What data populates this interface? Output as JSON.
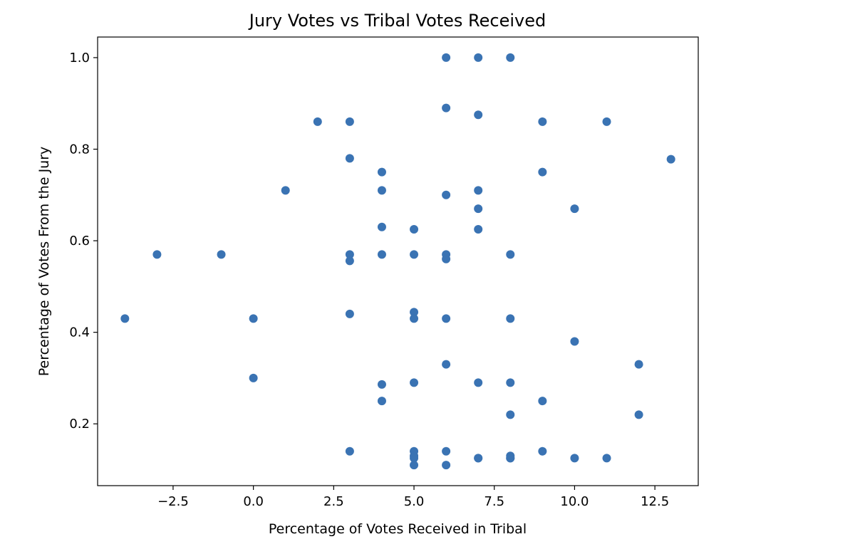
{
  "chart_data": {
    "type": "scatter",
    "title": "Jury Votes vs Tribal Votes Received",
    "xlabel": "Percentage of Votes Received in Tribal",
    "ylabel": "Percentage of Votes From the Jury",
    "xlim": [
      -4.85,
      13.85
    ],
    "ylim": [
      0.065,
      1.045
    ],
    "xticks": [
      -2.5,
      0.0,
      2.5,
      5.0,
      7.5,
      10.0,
      12.5
    ],
    "xtick_labels": [
      "−2.5",
      "0.0",
      "2.5",
      "5.0",
      "7.5",
      "10.0",
      "12.5"
    ],
    "yticks": [
      0.2,
      0.4,
      0.6,
      0.8,
      1.0
    ],
    "ytick_labels": [
      "0.2",
      "0.4",
      "0.6",
      "0.8",
      "1.0"
    ],
    "grid": false,
    "point_color": "#3a73b3",
    "series": [
      {
        "name": "",
        "x": [
          -4,
          -3,
          -1,
          0,
          0,
          1,
          2,
          3,
          3,
          3,
          3,
          3,
          3,
          4,
          4,
          4,
          4,
          4,
          4,
          5,
          5,
          5,
          5,
          5,
          5,
          5,
          5,
          5,
          6,
          6,
          6,
          6,
          6,
          6,
          6,
          6,
          6,
          7,
          7,
          7,
          7,
          7,
          7,
          7,
          7,
          8,
          8,
          8,
          8,
          8,
          8,
          8,
          8,
          9,
          9,
          9,
          9,
          10,
          10,
          10,
          11,
          11,
          12,
          12,
          13
        ],
        "y": [
          0.43,
          0.57,
          0.57,
          0.43,
          0.3,
          0.71,
          0.86,
          0.86,
          0.78,
          0.57,
          0.556,
          0.44,
          0.14,
          0.75,
          0.71,
          0.63,
          0.57,
          0.286,
          0.25,
          0.625,
          0.57,
          0.444,
          0.43,
          0.29,
          0.14,
          0.13,
          0.125,
          0.11,
          1.0,
          0.89,
          0.7,
          0.57,
          0.56,
          0.43,
          0.33,
          0.14,
          0.11,
          1.0,
          0.875,
          0.71,
          0.67,
          0.625,
          0.29,
          0.125,
          0.125,
          1.0,
          0.57,
          0.43,
          0.29,
          0.22,
          0.13,
          0.125,
          0.125,
          0.86,
          0.75,
          0.25,
          0.14,
          0.67,
          0.38,
          0.125,
          0.86,
          0.125,
          0.33,
          0.22,
          0.778
        ]
      }
    ]
  }
}
